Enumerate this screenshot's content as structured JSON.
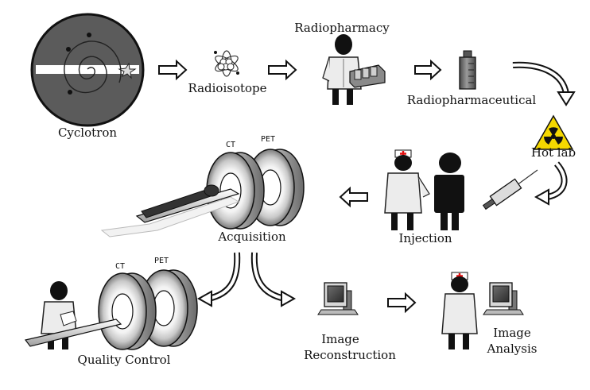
{
  "labels": {
    "cyclotron": "Cyclotron",
    "radioisotope": "Radioisotope",
    "radiopharmacy": "Radiopharmacy",
    "radiopharmaceutical": "Radiopharmaceutical",
    "hot_lab": "Hot lab",
    "injection": "Injection",
    "acquisition": "Acquisition",
    "quality_control": "Quality Control",
    "image_reconstruction_line1": "Image",
    "image_reconstruction_line2": "Reconstruction",
    "image_analysis_line1": "Image",
    "image_analysis_line2": "Analysis"
  },
  "scanner_labels": {
    "ct_top": "CT",
    "pet_top": "PET",
    "ct_bottom": "CT",
    "pet_bottom": "PET"
  },
  "colors": {
    "radiation_yellow": "#f5d800",
    "red_cross": "#e01010",
    "gown_gray": "#e2e2e2",
    "dark_gray": "#555555"
  }
}
